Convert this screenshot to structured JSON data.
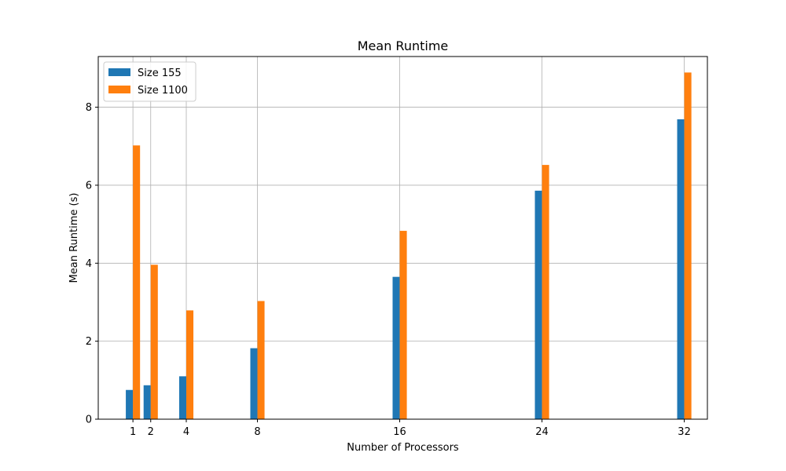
{
  "chart_data": {
    "type": "bar",
    "title": "Mean Runtime",
    "xlabel": "Number of Processors",
    "ylabel": "Mean Runtime (s)",
    "x": [
      1,
      2,
      4,
      8,
      16,
      24,
      32
    ],
    "xticks": [
      "1",
      "2",
      "4",
      "8",
      "16",
      "24",
      "32"
    ],
    "xlim": [
      -0.95,
      33.3
    ],
    "ylim": [
      0,
      9.3
    ],
    "yticks": [
      0,
      2,
      4,
      6,
      8
    ],
    "grid": true,
    "legend_position": "upper-left",
    "series": [
      {
        "name": "Size 155",
        "color": "#1f77b4",
        "values": [
          0.75,
          0.87,
          1.1,
          1.82,
          3.65,
          5.86,
          7.69
        ]
      },
      {
        "name": "Size 1100",
        "color": "#ff7f0e",
        "values": [
          7.02,
          3.96,
          2.79,
          3.03,
          4.83,
          6.52,
          8.89
        ]
      }
    ]
  }
}
